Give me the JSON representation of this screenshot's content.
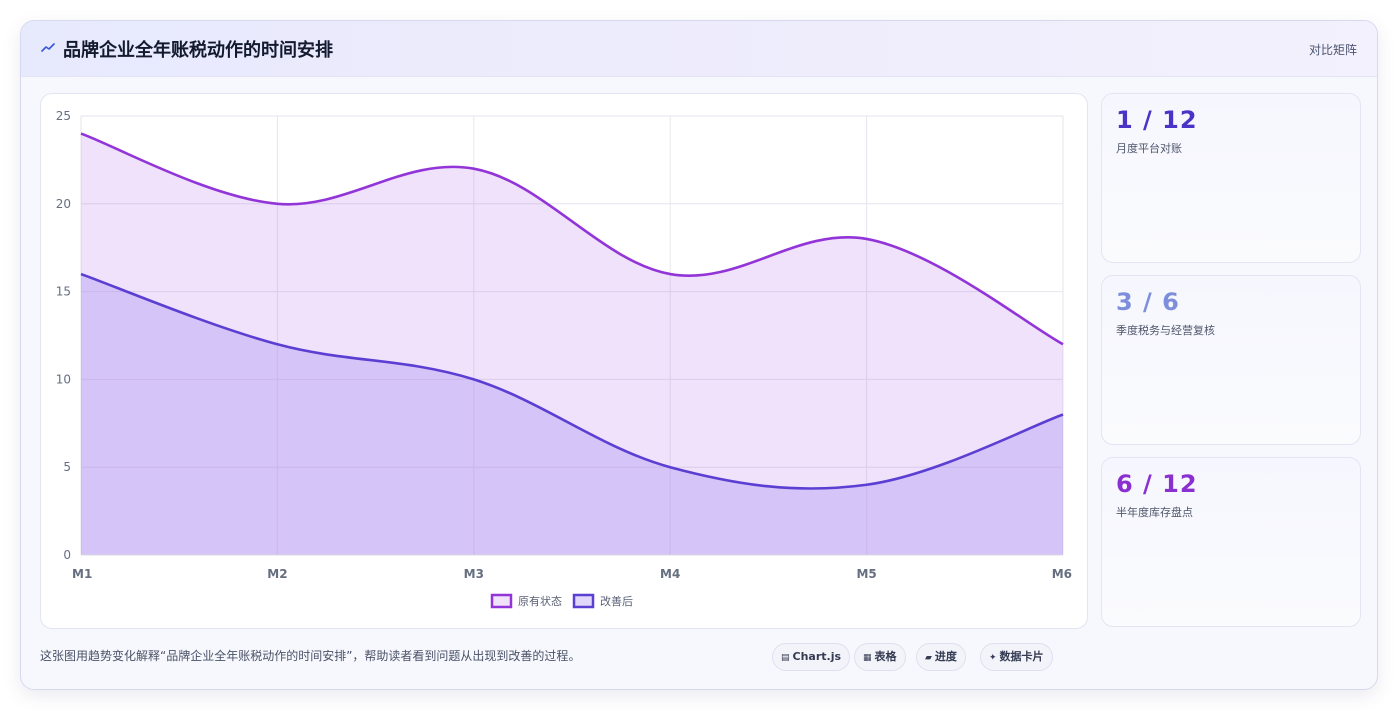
{
  "header": {
    "title": "品牌企业全年账税动作的时间安排",
    "right_link": "对比矩阵",
    "icon": "chart-line-icon"
  },
  "chart_data": {
    "type": "area",
    "categories": [
      "M1",
      "M2",
      "M3",
      "M4",
      "M5",
      "M6"
    ],
    "series": [
      {
        "name": "原有状态",
        "values": [
          24,
          20,
          22,
          16,
          18,
          12
        ],
        "color": "#9234d8",
        "fill": "rgba(176,110,230,0.20)"
      },
      {
        "name": "改善后",
        "values": [
          16,
          12,
          10,
          5,
          4,
          8
        ],
        "color": "#5b3fd3",
        "fill": "rgba(166,140,240,0.35)"
      }
    ],
    "ylim": [
      0,
      25
    ],
    "yticks": [
      0,
      5,
      10,
      15,
      20,
      25
    ],
    "grid": true,
    "legend_position": "bottom",
    "title": "",
    "xlabel": "",
    "ylabel": ""
  },
  "stats": [
    {
      "value": "1 / 12",
      "label": "月度平台对账",
      "color": "#4a34c8"
    },
    {
      "value": "3 / 6",
      "label": "季度税务与经营复核",
      "color": "#7d8fdc"
    },
    {
      "value": "6 / 12",
      "label": "半年度库存盘点",
      "color": "#8a2fd0"
    }
  ],
  "caption": "这张图用趋势变化解释“品牌企业全年账税动作的时间安排”，帮助读者看到问题从出现到改善的过程。",
  "tags": [
    {
      "icon": "▤",
      "label": "Chart.js"
    },
    {
      "icon": "▦",
      "label": "表格"
    },
    {
      "icon": "▰",
      "label": "进度"
    },
    {
      "icon": "✦",
      "label": "数据卡片"
    }
  ]
}
